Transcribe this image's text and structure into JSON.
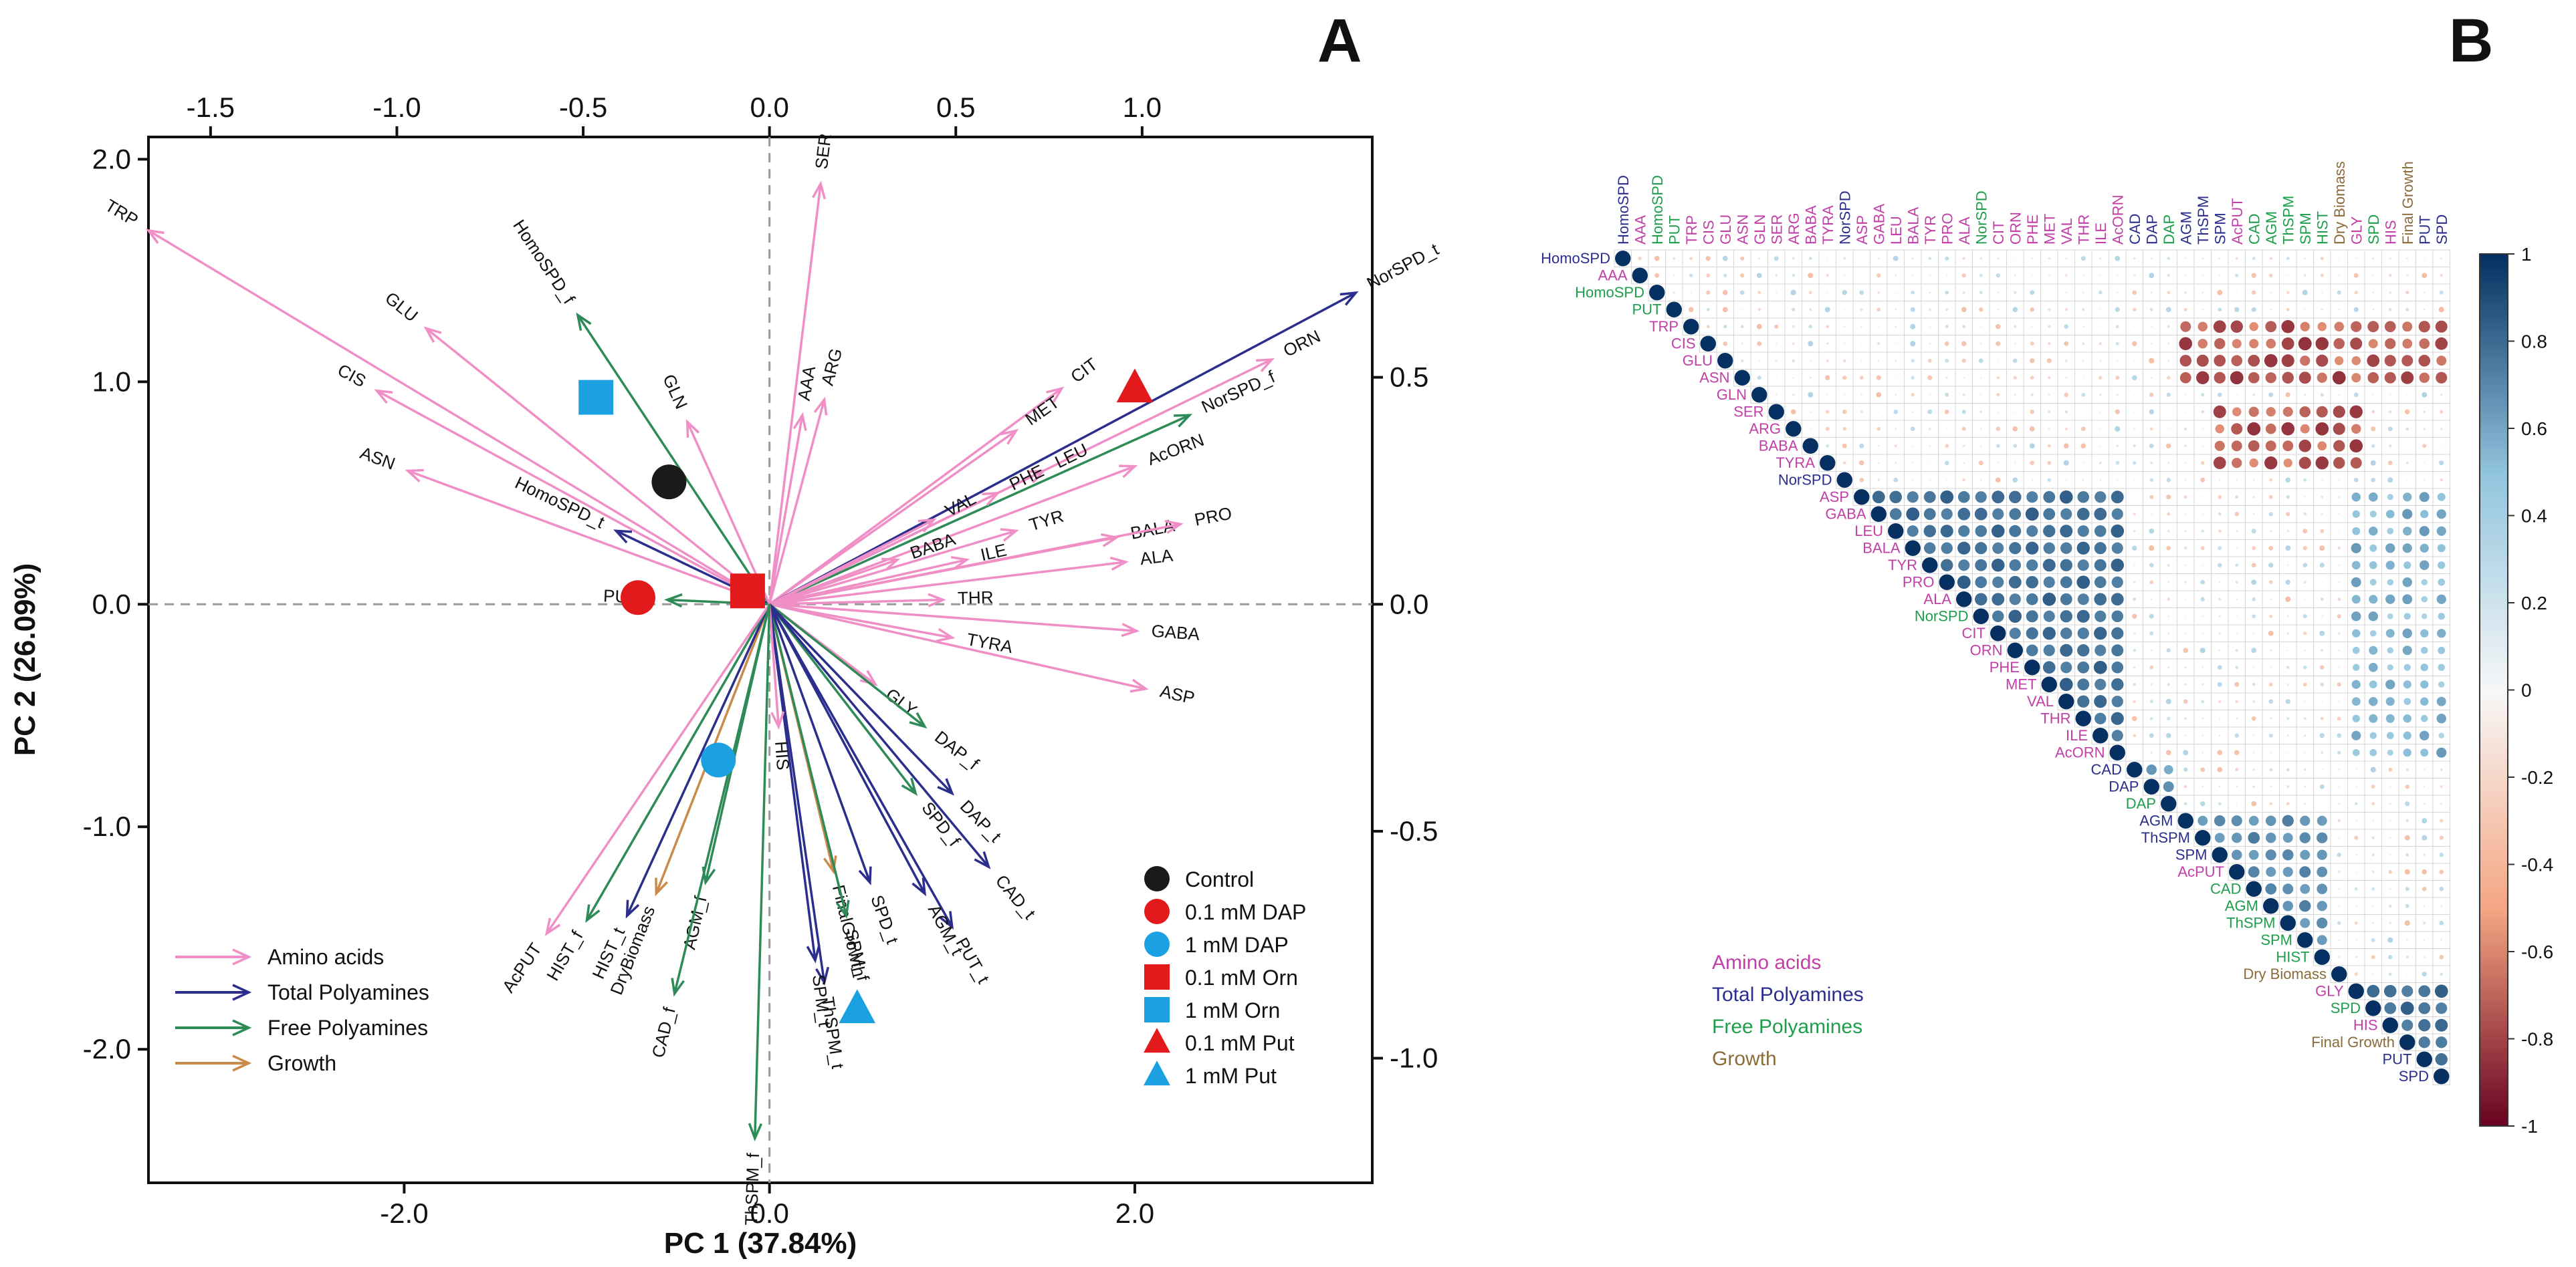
{
  "panels": {
    "a_label": "A",
    "b_label": "B"
  },
  "chart_data": [
    {
      "type": "scatter",
      "subtype": "pca-biplot",
      "title": "",
      "xlabel": "PC 1 (37.84%)",
      "ylabel": "PC 2 (26.09%)",
      "xlim": [
        -3.4,
        3.3
      ],
      "ylim": [
        -2.6,
        2.1
      ],
      "x_ticks": [
        -2.0,
        0.0,
        2.0
      ],
      "x_tick_labels": [
        "-2.0",
        "0.0",
        "2.0"
      ],
      "y_ticks": [
        -2.0,
        -1.0,
        0.0,
        1.0,
        2.0
      ],
      "y_tick_labels": [
        "-2.0",
        "-1.0",
        "0.0",
        "1.0",
        "2.0"
      ],
      "top_ticks": [
        -1.5,
        -1.0,
        -0.5,
        0.0,
        0.5,
        1.0
      ],
      "top_tick_labels": [
        "-1.5",
        "-1.0",
        "-0.5",
        "0.0",
        "0.5",
        "1.0"
      ],
      "right_ticks": [
        0.5,
        0.0,
        -0.5,
        -1.0
      ],
      "right_tick_labels": [
        "0.5",
        "0.0",
        "-0.5",
        "-1.0"
      ],
      "loading_scale": 2.04,
      "group_colors": {
        "amino": "#ef8fc6",
        "total": "#2b2e8c",
        "free": "#2e8b57",
        "growth": "#c98a4b"
      },
      "arrows": [
        {
          "label": "TRP",
          "group": "amino",
          "x": -3.4,
          "y": 1.68
        },
        {
          "label": "GLU",
          "group": "amino",
          "x": -1.88,
          "y": 1.24
        },
        {
          "label": "CIS",
          "group": "amino",
          "x": -2.15,
          "y": 0.96
        },
        {
          "label": "ASN",
          "group": "amino",
          "x": -1.98,
          "y": 0.6
        },
        {
          "label": "HomoSPD_f",
          "group": "free",
          "x": -1.05,
          "y": 1.3
        },
        {
          "label": "HomoSPD_t",
          "group": "total",
          "x": -0.84,
          "y": 0.33
        },
        {
          "label": "GLN",
          "group": "amino",
          "x": -0.45,
          "y": 0.82
        },
        {
          "label": "PUT_f",
          "group": "free",
          "x": -0.56,
          "y": 0.02
        },
        {
          "label": "SER",
          "group": "amino",
          "x": 0.28,
          "y": 1.89
        },
        {
          "label": "AAA",
          "group": "amino",
          "x": 0.18,
          "y": 0.85
        },
        {
          "label": "ARG",
          "group": "amino",
          "x": 0.3,
          "y": 0.92
        },
        {
          "label": "CIT",
          "group": "amino",
          "x": 1.6,
          "y": 0.97
        },
        {
          "label": "MET",
          "group": "amino",
          "x": 1.35,
          "y": 0.78
        },
        {
          "label": "ORN",
          "group": "amino",
          "x": 2.75,
          "y": 1.1
        },
        {
          "label": "NorSPD_t",
          "group": "total",
          "x": 3.21,
          "y": 1.4
        },
        {
          "label": "NorSPD_f",
          "group": "free",
          "x": 2.3,
          "y": 0.85
        },
        {
          "label": "AcORN",
          "group": "amino",
          "x": 2.0,
          "y": 0.62
        },
        {
          "label": "LEU",
          "group": "amino",
          "x": 1.5,
          "y": 0.6
        },
        {
          "label": "PHE",
          "group": "amino",
          "x": 1.25,
          "y": 0.5
        },
        {
          "label": "VAL",
          "group": "amino",
          "x": 0.9,
          "y": 0.38
        },
        {
          "label": "TYR",
          "group": "amino",
          "x": 1.35,
          "y": 0.33
        },
        {
          "label": "BABA",
          "group": "amino",
          "x": 0.7,
          "y": 0.2
        },
        {
          "label": "ILE",
          "group": "amino",
          "x": 1.08,
          "y": 0.2
        },
        {
          "label": "BALA",
          "group": "amino",
          "x": 1.9,
          "y": 0.3
        },
        {
          "label": "PRO",
          "group": "amino",
          "x": 2.25,
          "y": 0.36
        },
        {
          "label": "ALA",
          "group": "amino",
          "x": 1.95,
          "y": 0.19
        },
        {
          "label": "THR",
          "group": "amino",
          "x": 0.95,
          "y": 0.02
        },
        {
          "label": "TYRA",
          "group": "amino",
          "x": 1.0,
          "y": -0.15
        },
        {
          "label": "GABA",
          "group": "amino",
          "x": 2.01,
          "y": -0.12
        },
        {
          "label": "ASP",
          "group": "amino",
          "x": 2.06,
          "y": -0.38
        },
        {
          "label": "GLY",
          "group": "amino",
          "x": 0.58,
          "y": -0.36
        },
        {
          "label": "DAP_f",
          "group": "free",
          "x": 0.85,
          "y": -0.55
        },
        {
          "label": "SPD_f",
          "group": "free",
          "x": 0.8,
          "y": -0.85
        },
        {
          "label": "DAP_t",
          "group": "total",
          "x": 1.0,
          "y": -0.85
        },
        {
          "label": "CAD_t",
          "group": "total",
          "x": 1.2,
          "y": -1.18
        },
        {
          "label": "PUT_t",
          "group": "total",
          "x": 1.0,
          "y": -1.45
        },
        {
          "label": "AGM_t",
          "group": "total",
          "x": 0.85,
          "y": -1.3
        },
        {
          "label": "FinalGrowth",
          "group": "growth",
          "x": 0.35,
          "y": -1.2
        },
        {
          "label": "SPM_f",
          "group": "free",
          "x": 0.42,
          "y": -1.4
        },
        {
          "label": "SPD_t",
          "group": "total",
          "x": 0.55,
          "y": -1.25
        },
        {
          "label": "ThSPM_t",
          "group": "total",
          "x": 0.3,
          "y": -1.7
        },
        {
          "label": "SPM_t",
          "group": "total",
          "x": 0.25,
          "y": -1.6
        },
        {
          "label": "HIS",
          "group": "amino",
          "x": 0.05,
          "y": -0.55
        },
        {
          "label": "ThSPM_f",
          "group": "free",
          "x": -0.08,
          "y": -2.4
        },
        {
          "label": "AGM_f",
          "group": "free",
          "x": -0.35,
          "y": -1.25
        },
        {
          "label": "DryBiomass",
          "group": "growth",
          "x": -0.62,
          "y": -1.3
        },
        {
          "label": "HIST_t",
          "group": "total",
          "x": -0.78,
          "y": -1.4
        },
        {
          "label": "HIST_f",
          "group": "free",
          "x": -1.0,
          "y": -1.42
        },
        {
          "label": "AcPUT",
          "group": "amino",
          "x": -1.22,
          "y": -1.48
        },
        {
          "label": "CAD_f",
          "group": "free",
          "x": -0.52,
          "y": -1.75
        }
      ],
      "points": [
        {
          "name": "Control",
          "x": -0.55,
          "y": 0.55,
          "shape": "circle",
          "color": "#1a1a1a"
        },
        {
          "name": "0.1 mM DAP",
          "x": -0.72,
          "y": 0.03,
          "shape": "circle",
          "color": "#e31a1c"
        },
        {
          "name": "1 mM DAP",
          "x": -0.28,
          "y": -0.7,
          "shape": "circle",
          "color": "#1ba1e2"
        },
        {
          "name": "0.1 mM Orn",
          "x": -0.12,
          "y": 0.06,
          "shape": "square",
          "color": "#e31a1c"
        },
        {
          "name": "1 mM Orn",
          "x": -0.95,
          "y": 0.93,
          "shape": "square",
          "color": "#1ba1e2"
        },
        {
          "name": "0.1 mM Put",
          "x": 2.0,
          "y": 0.97,
          "shape": "triangle",
          "color": "#e31a1c"
        },
        {
          "name": "1 mM Put",
          "x": 0.48,
          "y": -1.82,
          "shape": "triangle",
          "color": "#1ba1e2"
        }
      ],
      "arrow_legend": [
        {
          "label": "Amino acids",
          "group": "amino"
        },
        {
          "label": "Total Polyamines",
          "group": "total"
        },
        {
          "label": "Free Polyamines",
          "group": "free"
        },
        {
          "label": "Growth",
          "group": "growth"
        }
      ],
      "point_legend": [
        "Control",
        "0.1 mM DAP",
        "1 mM DAP",
        "0.1 mM Orn",
        "1 mM Orn",
        "0.1 mM Put",
        "1 mM Put"
      ]
    },
    {
      "type": "heatmap",
      "subtype": "correlation-upper-triangle",
      "variables": [
        {
          "name": "HomoSPD",
          "group": "total"
        },
        {
          "name": "AAA",
          "group": "amino"
        },
        {
          "name": "HomoSPD",
          "group": "free"
        },
        {
          "name": "PUT",
          "group": "free"
        },
        {
          "name": "TRP",
          "group": "amino"
        },
        {
          "name": "CIS",
          "group": "amino"
        },
        {
          "name": "GLU",
          "group": "amino"
        },
        {
          "name": "ASN",
          "group": "amino"
        },
        {
          "name": "GLN",
          "group": "amino"
        },
        {
          "name": "SER",
          "group": "amino"
        },
        {
          "name": "ARG",
          "group": "amino"
        },
        {
          "name": "BABA",
          "group": "amino"
        },
        {
          "name": "TYRA",
          "group": "amino"
        },
        {
          "name": "NorSPD",
          "group": "total"
        },
        {
          "name": "ASP",
          "group": "amino"
        },
        {
          "name": "GABA",
          "group": "amino"
        },
        {
          "name": "LEU",
          "group": "amino"
        },
        {
          "name": "BALA",
          "group": "amino"
        },
        {
          "name": "TYR",
          "group": "amino"
        },
        {
          "name": "PRO",
          "group": "amino"
        },
        {
          "name": "ALA",
          "group": "amino"
        },
        {
          "name": "NorSPD",
          "group": "free"
        },
        {
          "name": "CIT",
          "group": "amino"
        },
        {
          "name": "ORN",
          "group": "amino"
        },
        {
          "name": "PHE",
          "group": "amino"
        },
        {
          "name": "MET",
          "group": "amino"
        },
        {
          "name": "VAL",
          "group": "amino"
        },
        {
          "name": "THR",
          "group": "amino"
        },
        {
          "name": "ILE",
          "group": "amino"
        },
        {
          "name": "AcORN",
          "group": "amino"
        },
        {
          "name": "CAD",
          "group": "total"
        },
        {
          "name": "DAP",
          "group": "total"
        },
        {
          "name": "DAP",
          "group": "free"
        },
        {
          "name": "AGM",
          "group": "total"
        },
        {
          "name": "ThSPM",
          "group": "total"
        },
        {
          "name": "SPM",
          "group": "total"
        },
        {
          "name": "AcPUT",
          "group": "amino"
        },
        {
          "name": "CAD",
          "group": "free"
        },
        {
          "name": "AGM",
          "group": "free"
        },
        {
          "name": "ThSPM",
          "group": "free"
        },
        {
          "name": "SPM",
          "group": "free"
        },
        {
          "name": "HIST",
          "group": "free"
        },
        {
          "name": "Dry Biomass",
          "group": "growth"
        },
        {
          "name": "GLY",
          "group": "amino"
        },
        {
          "name": "SPD",
          "group": "free"
        },
        {
          "name": "HIS",
          "group": "amino"
        },
        {
          "name": "Final Growth",
          "group": "growth"
        },
        {
          "name": "PUT",
          "group": "total"
        },
        {
          "name": "SPD",
          "group": "total"
        }
      ],
      "cluster_blocks": [
        {
          "from": 14,
          "to": 29,
          "r": 0.85
        },
        {
          "from": 30,
          "to": 32,
          "r": 0.7
        },
        {
          "from": 33,
          "to": 41,
          "r": 0.75
        },
        {
          "from": 43,
          "to": 48,
          "r": 0.85
        }
      ],
      "group_legend": [
        {
          "label": "Amino acids",
          "group": "amino"
        },
        {
          "label": "Total Polyamines",
          "group": "total"
        },
        {
          "label": "Free Polyamines",
          "group": "free"
        },
        {
          "label": "Growth",
          "group": "growth"
        }
      ],
      "group_colors": {
        "amino": "#c13fa7",
        "total": "#2b2e8c",
        "free": "#1e9e4c",
        "growth": "#8b6b3a"
      },
      "colorbar_ticks": [
        1,
        0.8,
        0.6,
        0.4,
        0.2,
        0,
        -0.2,
        -0.4,
        -0.6,
        -0.8,
        -1
      ],
      "colorbar_labels": [
        "1",
        "0.8",
        "0.6",
        "0.4",
        "0.2",
        "0",
        "-0.2",
        "-0.4",
        "-0.6",
        "-0.8",
        "-1"
      ]
    }
  ]
}
